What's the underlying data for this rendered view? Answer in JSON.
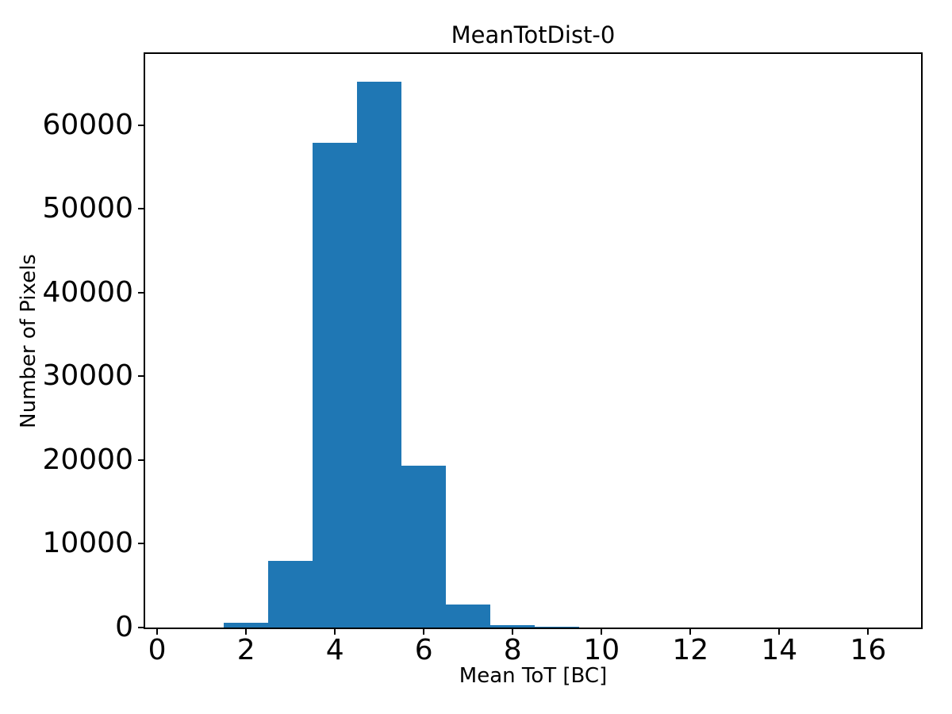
{
  "chart_data": {
    "type": "bar",
    "subtype": "histogram",
    "title": "MeanTotDist-0",
    "xlabel": "Mean ToT [BC]",
    "ylabel": "Number of Pixels",
    "bar_color": "#1f77b4",
    "background_color": "#ffffff",
    "spine_color": "#000000",
    "grid": false,
    "legend": null,
    "bin_edges": [
      0.5,
      1.5,
      2.5,
      3.5,
      4.5,
      5.5,
      6.5,
      7.5,
      8.5,
      9.5,
      10.5,
      11.5,
      12.5,
      13.5,
      14.5,
      15.5,
      16.5
    ],
    "counts": [
      0,
      540,
      7980,
      57900,
      65200,
      19310,
      2780,
      320,
      130,
      0,
      0,
      0,
      0,
      0,
      0,
      0
    ],
    "xlim": [
      -0.27,
      17.19
    ],
    "ylim": [
      0,
      68500
    ],
    "xticks": [
      0,
      2,
      4,
      6,
      8,
      10,
      12,
      14,
      16
    ],
    "xtick_labels": [
      "0",
      "2",
      "4",
      "6",
      "8",
      "10",
      "12",
      "14",
      "16"
    ],
    "yticks": [
      0,
      10000,
      20000,
      30000,
      40000,
      50000,
      60000
    ],
    "ytick_labels": [
      "0",
      "10000",
      "20000",
      "30000",
      "40000",
      "50000",
      "60000"
    ]
  }
}
